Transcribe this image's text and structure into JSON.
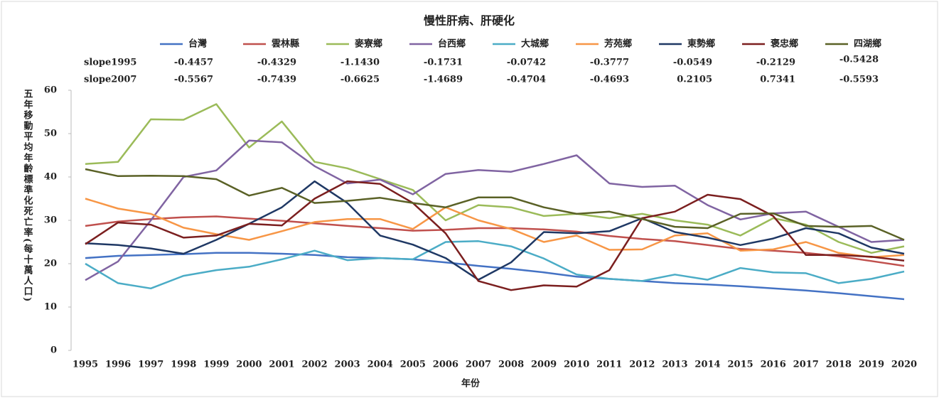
{
  "chart_data": {
    "type": "line",
    "title": "慢性肝病、肝硬化",
    "y_label": "五年移動平均年齡標準化死亡率(每十萬人口)",
    "x_label": "年份",
    "categories": [
      "1995",
      "1996",
      "1997",
      "1998",
      "1999",
      "2000",
      "2001",
      "2002",
      "2003",
      "2004",
      "2005",
      "2006",
      "2007",
      "2008",
      "2009",
      "2010",
      "2011",
      "2012",
      "2013",
      "2014",
      "2015",
      "2016",
      "2017",
      "2018",
      "2019",
      "2020"
    ],
    "ylim": [
      0,
      60
    ],
    "yticks": [
      0,
      10,
      20,
      30,
      40,
      50,
      60
    ],
    "series": [
      {
        "name": "台灣",
        "color": "#4472c4",
        "values": [
          21.3,
          21.8,
          22,
          22.2,
          22.5,
          22.5,
          22.3,
          22,
          21.5,
          21.3,
          21,
          20.3,
          19.5,
          18.8,
          18,
          17,
          16.5,
          16,
          15.5,
          15.2,
          14.8,
          14.3,
          13.8,
          13.2,
          12.5,
          11.8
        ]
      },
      {
        "name": "雲林縣",
        "color": "#c0504d",
        "values": [
          28.7,
          29.7,
          30.3,
          30.7,
          30.9,
          30.4,
          29.9,
          29.3,
          28.7,
          28.2,
          27.6,
          27.8,
          28.2,
          28.2,
          27.9,
          27.4,
          26.4,
          25.7,
          25.2,
          24.3,
          23.4,
          23,
          22.5,
          21.7,
          20.6,
          19.5
        ]
      },
      {
        "name": "麥寮鄉",
        "color": "#9bbb59",
        "values": [
          43,
          43.5,
          53.3,
          53.2,
          56.8,
          46.8,
          52.8,
          43.5,
          42,
          39.5,
          37,
          30,
          33.5,
          33,
          31,
          31.5,
          30.5,
          31.5,
          30,
          29,
          26.5,
          30.5,
          29,
          25,
          22.5,
          24
        ]
      },
      {
        "name": "台西鄉",
        "color": "#8064a2",
        "values": [
          16.2,
          20.5,
          30,
          40,
          41.5,
          48.4,
          48,
          42.5,
          38.5,
          39.4,
          36,
          40.7,
          41.6,
          41.2,
          43,
          45,
          38.5,
          37.7,
          38,
          33.5,
          30.2,
          31.6,
          32,
          28.5,
          25,
          25.5
        ]
      },
      {
        "name": "大城鄉",
        "color": "#4bacc6",
        "values": [
          20,
          15.5,
          14.3,
          17.2,
          18.5,
          19.3,
          21,
          23,
          20.8,
          21.3,
          21,
          25,
          25.2,
          24,
          21.2,
          17.5,
          16.5,
          16,
          17.5,
          16.3,
          19,
          18,
          17.8,
          15.5,
          16.5,
          18.2
        ]
      },
      {
        "name": "芳苑鄉",
        "color": "#f79646",
        "values": [
          35,
          32.7,
          31.5,
          28.3,
          26.8,
          25.5,
          27.5,
          29.6,
          30.3,
          30.3,
          28,
          33,
          30,
          28,
          25,
          26.5,
          23.2,
          23.3,
          26.5,
          27,
          23,
          23.3,
          25,
          22.5,
          21.5,
          22
        ]
      },
      {
        "name": "東勢鄉",
        "color": "#1f3864",
        "values": [
          24.7,
          24.3,
          23.5,
          22.3,
          25.5,
          29.2,
          33,
          39,
          34,
          26.5,
          24.4,
          21.3,
          16.3,
          20.3,
          27.3,
          27,
          27.5,
          30.5,
          27.3,
          26,
          24.3,
          25.8,
          28.2,
          27,
          23.7,
          22.3
        ]
      },
      {
        "name": "褒忠鄉",
        "color": "#7b1f1f",
        "values": [
          24.5,
          29.5,
          29,
          26,
          26.5,
          29.2,
          28.8,
          35,
          39,
          38.4,
          34,
          27,
          16,
          13.9,
          15,
          14.7,
          18.5,
          30.5,
          32,
          35.9,
          34.9,
          31,
          22,
          22,
          21.6,
          20.7
        ]
      },
      {
        "name": "四湖鄉",
        "color": "#5a6126",
        "values": [
          41.8,
          40.2,
          40.3,
          40.2,
          39.5,
          35.7,
          37.5,
          34,
          34.5,
          35.2,
          34,
          33,
          35.3,
          35.3,
          33,
          31.5,
          32,
          30.3,
          28.5,
          28.2,
          31.5,
          31.6,
          28.7,
          28.5,
          28.7,
          25.5
        ]
      }
    ],
    "slopes": [
      {
        "label": "slope1995",
        "values": [
          "-0.4457",
          "-0.4329",
          "-1.1430",
          "-0.1731",
          "-0.0742",
          "-0.3777",
          "-0.0549",
          "-0.2129",
          "-0.5428"
        ]
      },
      {
        "label": "slope2007",
        "values": [
          "-0.5567",
          "-0.7439",
          "-0.6625",
          "-1.4689",
          "-0.4704",
          "-0.4693",
          "0.2105",
          "0.7341",
          "-0.5593"
        ]
      }
    ]
  }
}
